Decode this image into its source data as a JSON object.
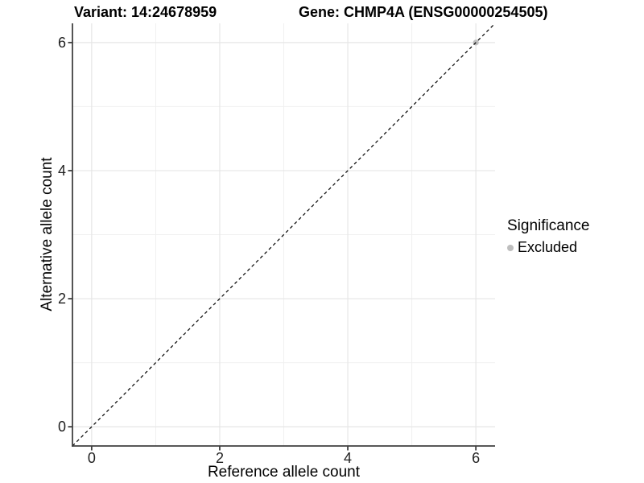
{
  "chart_data": {
    "type": "scatter",
    "titles": {
      "left": "Variant: 14:24678959",
      "right": "Gene: CHMP4A (ENSG00000254505)"
    },
    "xlabel": "Reference allele count",
    "ylabel": "Alternative allele count",
    "xlim": [
      -0.3,
      6.3
    ],
    "ylim": [
      -0.3,
      6.3
    ],
    "x_ticks": [
      0,
      2,
      4,
      6
    ],
    "y_ticks": [
      0,
      2,
      4,
      6
    ],
    "x_minor_ticks": [
      1,
      3,
      5
    ],
    "y_minor_ticks": [
      1,
      3,
      5
    ],
    "grid": true,
    "reference_line": {
      "type": "identity",
      "slope": 1,
      "intercept": 0,
      "style": "dashed",
      "color": "#000000"
    },
    "series": [
      {
        "name": "Excluded",
        "color": "#bebebe",
        "points": [
          {
            "x": 6,
            "y": 6
          }
        ]
      }
    ],
    "legend": {
      "title": "Significance",
      "position": "right",
      "entries": [
        {
          "label": "Excluded",
          "color": "#bebebe"
        }
      ]
    }
  },
  "colors": {
    "background": "#ffffff",
    "grid_major": "#e6e6e6",
    "grid_minor": "#f0f0f0",
    "axis_line": "#404040",
    "tick_mark": "#404040"
  }
}
